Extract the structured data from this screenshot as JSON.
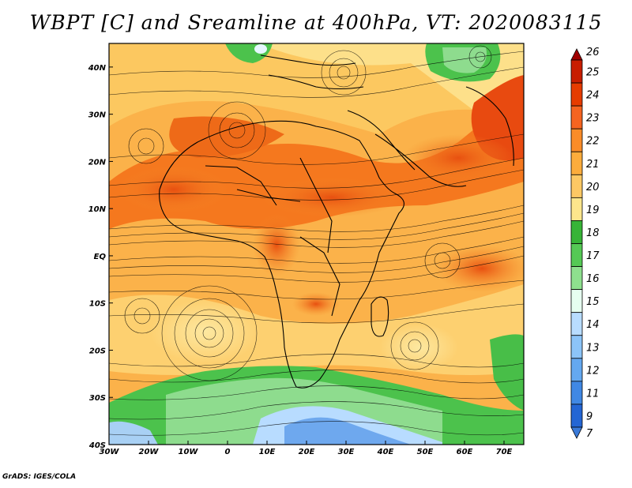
{
  "title": "WBPT [C] and Sreamline at 400hPa, VT: 2020083115",
  "credit": "GrADS: IGES/COLA",
  "map": {
    "lon_labels": [
      "30W",
      "20W",
      "10W",
      "0",
      "10E",
      "20E",
      "30E",
      "40E",
      "50E",
      "60E",
      "70E"
    ],
    "lat_labels": [
      "40N",
      "30N",
      "20N",
      "10N",
      "EQ",
      "10S",
      "20S",
      "30S",
      "40S"
    ],
    "lon_range": [
      -30,
      75
    ],
    "lat_range": [
      -40,
      45
    ],
    "field": "Wet-bulb potential temperature with streamlines"
  },
  "colorbar": {
    "labels": [
      "26",
      "25",
      "24",
      "23",
      "22",
      "21",
      "20",
      "19",
      "18",
      "17",
      "16",
      "15",
      "14",
      "13",
      "12",
      "11",
      "9",
      "7"
    ],
    "colors": [
      "#a00000",
      "#c81e00",
      "#e63c00",
      "#f56420",
      "#fa8c28",
      "#fcac3c",
      "#fdc864",
      "#fde68c",
      "#37b437",
      "#55c955",
      "#8ee08e",
      "#e6fff0",
      "#b8dcff",
      "#8cc4f8",
      "#64a8f0",
      "#4088e4",
      "#2466d4",
      "#3a7ad8"
    ]
  }
}
